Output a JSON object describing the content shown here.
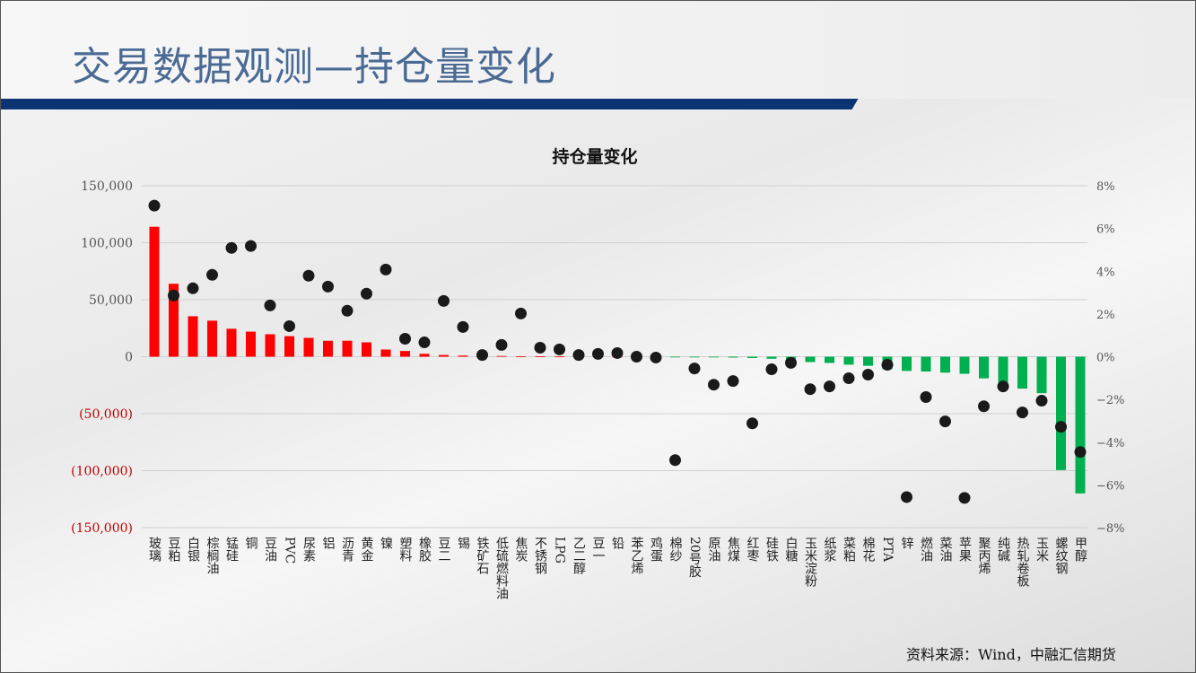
{
  "page": {
    "title": "交易数据观测—持仓量变化",
    "source": "资料来源：Wind，中融汇信期货",
    "colors": {
      "title": "#4a6a94",
      "band": "#0c3472",
      "positive": "#ff0000",
      "negative": "#00b050",
      "dot": "#1a1a1a",
      "negative_tick": "#c00000"
    }
  },
  "chart_data": {
    "type": "bar+scatter",
    "title": "持仓量变化",
    "categories": [
      "玻璃",
      "豆粕",
      "白银",
      "棕榈油",
      "锰硅",
      "铜",
      "豆油",
      "PVC",
      "尿素",
      "铝",
      "沥青",
      "黄金",
      "镍",
      "塑料",
      "橡胶",
      "豆二",
      "锡",
      "铁矿石",
      "低硫燃料油",
      "焦炭",
      "不锈钢",
      "LPG",
      "乙二醇",
      "豆一",
      "铅",
      "苯乙烯",
      "鸡蛋",
      "棉纱",
      "20号胶",
      "原油",
      "焦煤",
      "红枣",
      "硅铁",
      "白糖",
      "玉米淀粉",
      "纸浆",
      "菜粕",
      "棉花",
      "PTA",
      "锌",
      "燃油",
      "菜油",
      "苹果",
      "聚丙烯",
      "纯碱",
      "热轧卷板",
      "玉米",
      "螺纹钢",
      "甲醇"
    ],
    "series": [
      {
        "type": "bar",
        "axis": "left",
        "values": [
          114000,
          64000,
          35500,
          31600,
          24500,
          22000,
          19700,
          18000,
          16500,
          14000,
          14000,
          12600,
          6300,
          5000,
          2500,
          1500,
          1000,
          800,
          600,
          400,
          300,
          200,
          150,
          100,
          50,
          30,
          10,
          -50,
          -200,
          -500,
          -800,
          -1200,
          -1800,
          -3000,
          -4700,
          -5500,
          -7000,
          -8000,
          -11000,
          -12500,
          -13000,
          -14000,
          -15000,
          -19000,
          -23000,
          -28000,
          -32000,
          -99500,
          -120000
        ]
      },
      {
        "type": "scatter",
        "axis": "right",
        "values": [
          7.07,
          2.86,
          3.2,
          3.83,
          5.09,
          5.18,
          2.4,
          1.43,
          3.79,
          3.28,
          2.15,
          2.95,
          4.08,
          0.84,
          0.67,
          2.61,
          1.39,
          0.08,
          0.55,
          2.02,
          0.42,
          0.34,
          0.08,
          0.13,
          0.17,
          0.0,
          -0.04,
          -4.84,
          -0.55,
          -1.31,
          -1.14,
          -3.12,
          -0.59,
          -0.29,
          -1.52,
          -1.39,
          -1.01,
          -0.84,
          -0.38,
          -6.57,
          -1.89,
          -3.03,
          -6.61,
          -2.32,
          -1.39,
          -2.61,
          -2.06,
          -3.28,
          -4.46
        ]
      }
    ],
    "left_axis": {
      "ylim": [
        -150000,
        150000
      ],
      "ticks": [
        "150,000",
        "100,000",
        "50,000",
        "0",
        "(50,000)",
        "(100,000)",
        "(150,000)"
      ]
    },
    "right_axis": {
      "ylim": [
        -8,
        8
      ],
      "ticks": [
        "8%",
        "6%",
        "4%",
        "2%",
        "0%",
        "−2%",
        "−4%",
        "−6%",
        "−8%"
      ]
    },
    "grid": true
  }
}
